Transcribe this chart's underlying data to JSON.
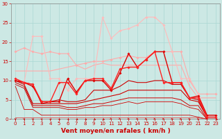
{
  "background_color": "#cce8e4",
  "grid_color": "#aad8d4",
  "xlabel": "Vent moyen/en rafales ( km/h )",
  "xlabel_color": "#cc0000",
  "xlabel_fontsize": 6.5,
  "xtick_color": "#cc0000",
  "ytick_color": "#cc0000",
  "ylim": [
    0,
    30
  ],
  "xlim": [
    -0.5,
    23.5
  ],
  "yticks": [
    0,
    5,
    10,
    15,
    20,
    25,
    30
  ],
  "xticks": [
    0,
    1,
    2,
    3,
    4,
    5,
    6,
    7,
    8,
    9,
    10,
    11,
    12,
    13,
    14,
    15,
    16,
    17,
    18,
    19,
    20,
    21,
    22,
    23
  ],
  "tick_fontsize": 5.0,
  "series": [
    {
      "x": [
        0,
        1,
        2,
        3,
        4,
        5,
        6,
        7,
        8,
        9,
        10,
        11,
        12,
        13,
        14,
        15,
        16,
        17,
        18,
        19,
        20,
        21,
        22,
        23
      ],
      "y": [
        17.5,
        18.5,
        17.5,
        17.0,
        17.5,
        17.0,
        17.0,
        14.0,
        14.5,
        15.0,
        15.0,
        15.5,
        16.0,
        16.5,
        16.0,
        16.0,
        17.5,
        17.5,
        17.5,
        17.5,
        10.0,
        6.5,
        6.5,
        6.5
      ],
      "color": "#ffaaaa",
      "lw": 0.8,
      "marker": "D",
      "markersize": 1.8
    },
    {
      "x": [
        0,
        1,
        2,
        3,
        4,
        5,
        6,
        7,
        8,
        9,
        10,
        11,
        12,
        13,
        14,
        15,
        16,
        17,
        18,
        19,
        20,
        21,
        22,
        23
      ],
      "y": [
        12.5,
        12.5,
        12.5,
        12.5,
        12.5,
        13.0,
        13.5,
        14.0,
        13.0,
        14.0,
        14.5,
        14.0,
        14.0,
        14.0,
        14.0,
        14.0,
        14.0,
        14.0,
        14.0,
        14.0,
        8.5,
        5.5,
        5.5,
        5.5
      ],
      "color": "#ffaaaa",
      "lw": 0.8,
      "marker": null,
      "markersize": 0
    },
    {
      "x": [
        0,
        1,
        2,
        3,
        4,
        5,
        6,
        7,
        8,
        9,
        10,
        11,
        12,
        13,
        14,
        15,
        16,
        17,
        18,
        19,
        20,
        21,
        22,
        23
      ],
      "y": [
        10.5,
        9.5,
        21.5,
        21.5,
        10.5,
        10.5,
        7.5,
        10.5,
        10.5,
        10.5,
        26.5,
        21.0,
        23.0,
        23.5,
        24.5,
        26.5,
        26.5,
        24.5,
        17.5,
        10.5,
        10.5,
        6.5,
        1.0,
        1.0
      ],
      "color": "#ffbbbb",
      "lw": 0.8,
      "marker": "D",
      "markersize": 1.8
    },
    {
      "x": [
        0,
        1,
        2,
        3,
        4,
        5,
        6,
        7,
        8,
        9,
        10,
        11,
        12,
        13,
        14,
        15,
        16,
        17,
        18,
        19,
        20,
        21,
        22,
        23
      ],
      "y": [
        10.0,
        9.5,
        8.5,
        4.5,
        4.5,
        4.5,
        10.5,
        7.0,
        10.0,
        10.0,
        10.0,
        7.5,
        12.0,
        17.0,
        13.5,
        15.5,
        17.5,
        17.5,
        9.5,
        9.5,
        5.5,
        6.0,
        1.0,
        1.0
      ],
      "color": "#dd0000",
      "lw": 1.0,
      "marker": "D",
      "markersize": 1.8
    },
    {
      "x": [
        0,
        1,
        2,
        3,
        4,
        5,
        6,
        7,
        8,
        9,
        10,
        11,
        12,
        13,
        14,
        15,
        16,
        17,
        18,
        19,
        20,
        21,
        22,
        23
      ],
      "y": [
        10.5,
        9.5,
        9.0,
        4.5,
        4.5,
        9.5,
        9.5,
        6.5,
        10.0,
        10.5,
        10.5,
        8.0,
        13.0,
        13.5,
        13.5,
        15.5,
        17.5,
        9.5,
        9.5,
        9.5,
        5.5,
        5.5,
        0.5,
        0.5
      ],
      "color": "#ff2222",
      "lw": 1.0,
      "marker": "D",
      "markersize": 1.8
    },
    {
      "x": [
        0,
        1,
        2,
        3,
        4,
        5,
        6,
        7,
        8,
        9,
        10,
        11,
        12,
        13,
        14,
        15,
        16,
        17,
        18,
        19,
        20,
        21,
        22,
        23
      ],
      "y": [
        10.0,
        9.5,
        9.0,
        4.0,
        4.5,
        5.0,
        4.5,
        4.5,
        5.0,
        7.5,
        7.5,
        7.5,
        8.5,
        10.0,
        9.5,
        9.5,
        10.0,
        10.0,
        9.0,
        9.0,
        5.5,
        5.0,
        0.5,
        0.5
      ],
      "color": "#cc0000",
      "lw": 0.8,
      "marker": null,
      "markersize": 0
    },
    {
      "x": [
        0,
        1,
        2,
        3,
        4,
        5,
        6,
        7,
        8,
        9,
        10,
        11,
        12,
        13,
        14,
        15,
        16,
        17,
        18,
        19,
        20,
        21,
        22,
        23
      ],
      "y": [
        10.0,
        9.0,
        4.0,
        4.0,
        4.0,
        4.0,
        4.0,
        4.0,
        4.5,
        5.0,
        5.5,
        6.0,
        6.5,
        7.5,
        7.5,
        7.5,
        7.5,
        7.5,
        7.5,
        7.5,
        5.0,
        4.5,
        0.5,
        0.5
      ],
      "color": "#cc0000",
      "lw": 0.8,
      "marker": null,
      "markersize": 0
    },
    {
      "x": [
        0,
        1,
        2,
        3,
        4,
        5,
        6,
        7,
        8,
        9,
        10,
        11,
        12,
        13,
        14,
        15,
        16,
        17,
        18,
        19,
        20,
        21,
        22,
        23
      ],
      "y": [
        9.5,
        8.5,
        3.5,
        3.5,
        3.5,
        3.5,
        3.0,
        3.0,
        3.5,
        4.0,
        4.0,
        4.5,
        5.0,
        5.5,
        5.5,
        5.5,
        5.5,
        5.5,
        5.5,
        5.0,
        3.5,
        3.5,
        0.0,
        0.0
      ],
      "color": "#cc0000",
      "lw": 0.7,
      "marker": null,
      "markersize": 0
    },
    {
      "x": [
        0,
        1,
        2,
        3,
        4,
        5,
        6,
        7,
        8,
        9,
        10,
        11,
        12,
        13,
        14,
        15,
        16,
        17,
        18,
        19,
        20,
        21,
        22,
        23
      ],
      "y": [
        9.0,
        8.0,
        3.0,
        3.0,
        3.0,
        3.0,
        2.5,
        2.5,
        3.0,
        3.0,
        3.5,
        3.5,
        4.0,
        4.5,
        4.0,
        4.5,
        4.5,
        4.5,
        4.5,
        4.0,
        3.0,
        2.5,
        0.0,
        0.0
      ],
      "color": "#cc0000",
      "lw": 0.6,
      "marker": null,
      "markersize": 0
    },
    {
      "x": [
        0,
        1,
        2,
        3,
        4,
        5,
        6,
        7,
        8,
        9,
        10,
        11,
        12,
        13,
        14,
        15,
        16,
        17,
        18,
        19,
        20,
        21,
        22,
        23
      ],
      "y": [
        8.5,
        2.5,
        2.5,
        1.0,
        1.0,
        1.0,
        1.0,
        1.0,
        1.0,
        1.0,
        1.0,
        1.0,
        1.0,
        1.0,
        1.0,
        1.0,
        1.0,
        1.0,
        1.0,
        1.0,
        1.0,
        0.5,
        0.0,
        0.0
      ],
      "color": "#cc0000",
      "lw": 0.6,
      "marker": null,
      "markersize": 0
    },
    {
      "x": [
        0,
        1,
        2,
        3,
        4,
        5,
        6,
        7,
        8,
        9,
        10,
        11,
        12,
        13,
        14,
        15,
        16,
        17,
        18,
        19,
        20,
        21,
        22,
        23
      ],
      "y": [
        0.3,
        0.3,
        0.3,
        0.3,
        0.3,
        0.3,
        0.3,
        0.3,
        0.3,
        0.3,
        0.3,
        0.3,
        0.3,
        0.3,
        0.3,
        0.3,
        0.3,
        0.3,
        0.3,
        0.3,
        0.3,
        0.3,
        0.0,
        0.0
      ],
      "color": "#dd3333",
      "lw": 0.5,
      "marker": null,
      "markersize": 0
    }
  ],
  "arrow_angles_deg": [
    90,
    85,
    80,
    75,
    70,
    65,
    60,
    55,
    50,
    45,
    40,
    35,
    30,
    25,
    20,
    15,
    10,
    5,
    0,
    -5,
    -10,
    -15,
    30,
    45
  ],
  "arrow_color": "#cc0000"
}
